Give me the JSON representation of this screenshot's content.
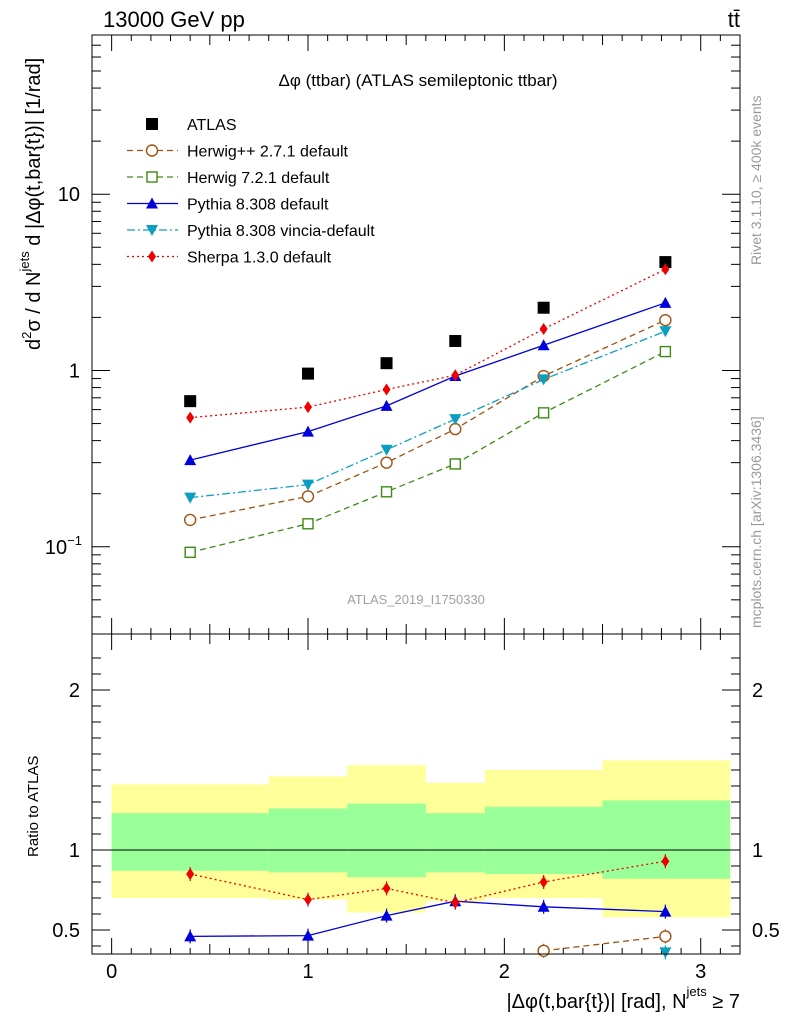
{
  "header": {
    "energy_label": "13000 GeV pp",
    "process_label": "tt̄",
    "analysis_id": "ATLAS_2019_I1750330",
    "rivet_label": "Rivet 3.1.10, ≥ 400k events",
    "source_label": "mcplots.cern.ch [arXiv:1306.3436]"
  },
  "chart_data": [
    {
      "type": "line",
      "panel": "main",
      "title": "Δφ (ttbar) (ATLAS semileptonic ttbar)",
      "ylabel_parts": {
        "d": "d",
        "two": "2",
        "sigma": "σ / d N",
        "jets": "jets",
        "rest": " d |Δφ(t,bar{t})| [1/rad]"
      },
      "yscale": "log",
      "ylim": [
        0.032,
        80
      ],
      "xlim": [
        -0.1,
        3.2
      ],
      "yticks": [
        {
          "value": 10,
          "label": "10"
        },
        {
          "value": 1,
          "label": "1"
        },
        {
          "value": 0.1,
          "base": "10",
          "exp": "−1"
        }
      ],
      "legend_position": "top-left",
      "x": [
        0.4,
        1.0,
        1.4,
        1.75,
        2.2,
        2.82
      ],
      "series": [
        {
          "name": "ATLAS",
          "color": "#000000",
          "marker": "square-filled",
          "line": "none",
          "values": [
            0.67,
            0.96,
            1.1,
            1.47,
            2.27,
            4.12
          ]
        },
        {
          "name": "Herwig++ 2.7.1 default",
          "color": "#a0520f",
          "marker": "circle-open",
          "line": "dashed",
          "values": [
            0.142,
            0.193,
            0.3,
            0.465,
            0.93,
            1.93
          ]
        },
        {
          "name": "Herwig 7.2.1 default",
          "color": "#3c8b12",
          "marker": "square-open",
          "line": "dashed",
          "values": [
            0.093,
            0.135,
            0.205,
            0.295,
            0.575,
            1.28
          ]
        },
        {
          "name": "Pythia 8.308 default",
          "color": "#0000dd",
          "marker": "triangle-up",
          "line": "solid",
          "values": [
            0.31,
            0.45,
            0.63,
            0.93,
            1.39,
            2.42
          ]
        },
        {
          "name": "Pythia 8.308 vincia-default",
          "color": "#0a9ebf",
          "marker": "triangle-down",
          "line": "dashdot",
          "values": [
            0.19,
            0.225,
            0.355,
            0.53,
            0.89,
            1.67
          ]
        },
        {
          "name": "Sherpa 1.3.0 default",
          "color": "#ee0000",
          "marker": "diamond",
          "line": "dotted",
          "values": [
            0.54,
            0.62,
            0.78,
            0.94,
            1.72,
            3.75
          ]
        }
      ]
    },
    {
      "type": "line",
      "panel": "ratio",
      "ylabel": "Ratio to ATLAS",
      "xlabel_parts": {
        "main": "|Δφ(t,bar{t})| [rad], N",
        "jets": "jets",
        "rest": " ≥ 7"
      },
      "ylim": [
        0.35,
        2.35
      ],
      "xlim": [
        -0.1,
        3.2
      ],
      "yticks": [
        {
          "value": 0.5,
          "label": "0.5"
        },
        {
          "value": 1,
          "label": "1"
        },
        {
          "value": 2,
          "label": "2"
        }
      ],
      "xticks": [
        {
          "value": 0,
          "label": "0"
        },
        {
          "value": 1,
          "label": "1"
        },
        {
          "value": 2,
          "label": "2"
        },
        {
          "value": 3,
          "label": "3"
        }
      ],
      "bands": [
        {
          "x0": 0,
          "x1": 0.8,
          "yellow": [
            0.7,
            1.41
          ],
          "green": [
            0.87,
            1.23
          ]
        },
        {
          "x0": 0.8,
          "x1": 1.2,
          "yellow": [
            0.69,
            1.46
          ],
          "green": [
            0.86,
            1.26
          ]
        },
        {
          "x0": 1.2,
          "x1": 1.6,
          "yellow": [
            0.61,
            1.53
          ],
          "green": [
            0.83,
            1.29
          ]
        },
        {
          "x0": 1.6,
          "x1": 1.9,
          "yellow": [
            0.68,
            1.42
          ],
          "green": [
            0.86,
            1.23
          ]
        },
        {
          "x0": 1.9,
          "x1": 2.5,
          "yellow": [
            0.7,
            1.5
          ],
          "green": [
            0.85,
            1.27
          ]
        },
        {
          "x0": 2.5,
          "x1": 3.15,
          "yellow": [
            0.58,
            1.56
          ],
          "green": [
            0.82,
            1.31
          ]
        }
      ],
      "x": [
        0.4,
        1.0,
        1.4,
        1.75,
        2.2,
        2.82
      ],
      "series": [
        {
          "name": "Herwig++ 2.7.1 default",
          "color": "#a0520f",
          "marker": "circle-open",
          "line": "dashed",
          "values": [
            null,
            null,
            null,
            null,
            0.37,
            0.46
          ]
        },
        {
          "name": "Pythia 8.308 default",
          "color": "#0000dd",
          "marker": "triangle-up",
          "line": "solid",
          "values": [
            0.46,
            0.465,
            0.59,
            0.68,
            0.645,
            0.615
          ]
        },
        {
          "name": "Pythia 8.308 vincia-default",
          "color": "#0a9ebf",
          "marker": "triangle-down",
          "line": "dashdot",
          "values": [
            null,
            null,
            null,
            null,
            null,
            0.36
          ]
        },
        {
          "name": "Sherpa 1.3.0 default",
          "color": "#ee0000",
          "marker": "diamond",
          "line": "dotted",
          "values": [
            0.85,
            0.69,
            0.76,
            0.67,
            0.8,
            0.93
          ]
        }
      ]
    }
  ]
}
